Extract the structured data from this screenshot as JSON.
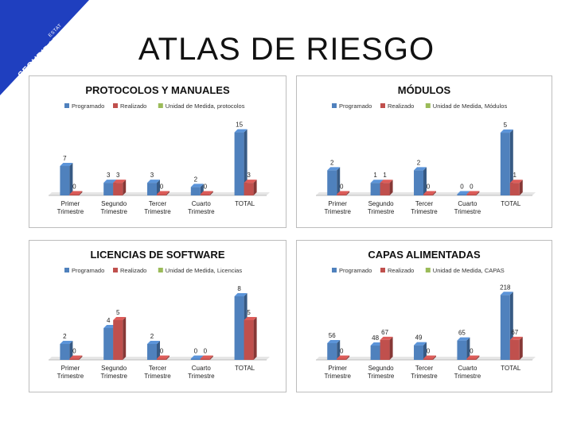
{
  "page": {
    "title": "ATLAS DE RIESGO",
    "corner_logo": {
      "line1": "SEGURIDAD",
      "line2": "CIUDADANA",
      "sub": "ESTAT"
    }
  },
  "colors": {
    "programado": "#4f81bd",
    "realizado": "#c0504d",
    "unidad": "#9bbb59",
    "corner": "#1f3fbf"
  },
  "chart_data": [
    {
      "type": "bar",
      "title": "PROTOCOLOS Y MANUALES",
      "categories": [
        "Primer Trimestre",
        "Segundo Trimestre",
        "Tercer Trimestre",
        "Cuarto Trimestre",
        "TOTAL"
      ],
      "series": [
        {
          "name": "Programado",
          "values": [
            7,
            3,
            3,
            2,
            15
          ]
        },
        {
          "name": "Realizado",
          "values": [
            0,
            3,
            0,
            0,
            3
          ]
        },
        {
          "name": "Unidad de Medida, protocolos",
          "values": [
            null,
            null,
            null,
            null,
            null
          ]
        }
      ],
      "ylim": [
        0,
        17
      ],
      "grid": false,
      "legend": "top"
    },
    {
      "type": "bar",
      "title": "MÓDULOS",
      "categories": [
        "Primer Trimestre",
        "Segundo Trimestre",
        "Tercer Trimestre",
        "Cuarto Trimestre",
        "TOTAL"
      ],
      "series": [
        {
          "name": "Programado",
          "values": [
            2,
            1,
            2,
            0,
            5
          ]
        },
        {
          "name": "Realizado",
          "values": [
            0,
            1,
            0,
            0,
            1
          ]
        },
        {
          "name": "Unidad de Medida, Módulos",
          "values": [
            null,
            null,
            null,
            null,
            null
          ]
        }
      ],
      "ylim": [
        0,
        5.7
      ],
      "grid": false,
      "legend": "top"
    },
    {
      "type": "bar",
      "title": "LICENCIAS DE SOFTWARE",
      "categories": [
        "Primer Trimestre",
        "Segundo Trimestre",
        "Tercer Trimestre",
        "Cuarto Trimestre",
        "TOTAL"
      ],
      "series": [
        {
          "name": "Programado",
          "values": [
            2,
            4,
            2,
            0,
            8
          ]
        },
        {
          "name": "Realizado",
          "values": [
            0,
            5,
            0,
            0,
            5
          ]
        },
        {
          "name": "Unidad de Medida, Licencias",
          "values": [
            null,
            null,
            null,
            null,
            null
          ]
        }
      ],
      "ylim": [
        0,
        9
      ],
      "grid": false,
      "legend": "top"
    },
    {
      "type": "bar",
      "title": "CAPAS ALIMENTADAS",
      "categories": [
        "Primer Trimestre",
        "Segundo Trimestre",
        "Tercer Trimestre",
        "Cuarto Trimestre",
        "TOTAL"
      ],
      "series": [
        {
          "name": "Programado",
          "values": [
            56,
            48,
            49,
            65,
            218
          ]
        },
        {
          "name": "Realizado",
          "values": [
            0,
            67,
            0,
            0,
            67
          ]
        },
        {
          "name": "Unidad de Medida, CAPAS",
          "values": [
            null,
            null,
            null,
            null,
            null
          ]
        }
      ],
      "ylim": [
        0,
        240
      ],
      "grid": false,
      "legend": "top"
    }
  ]
}
